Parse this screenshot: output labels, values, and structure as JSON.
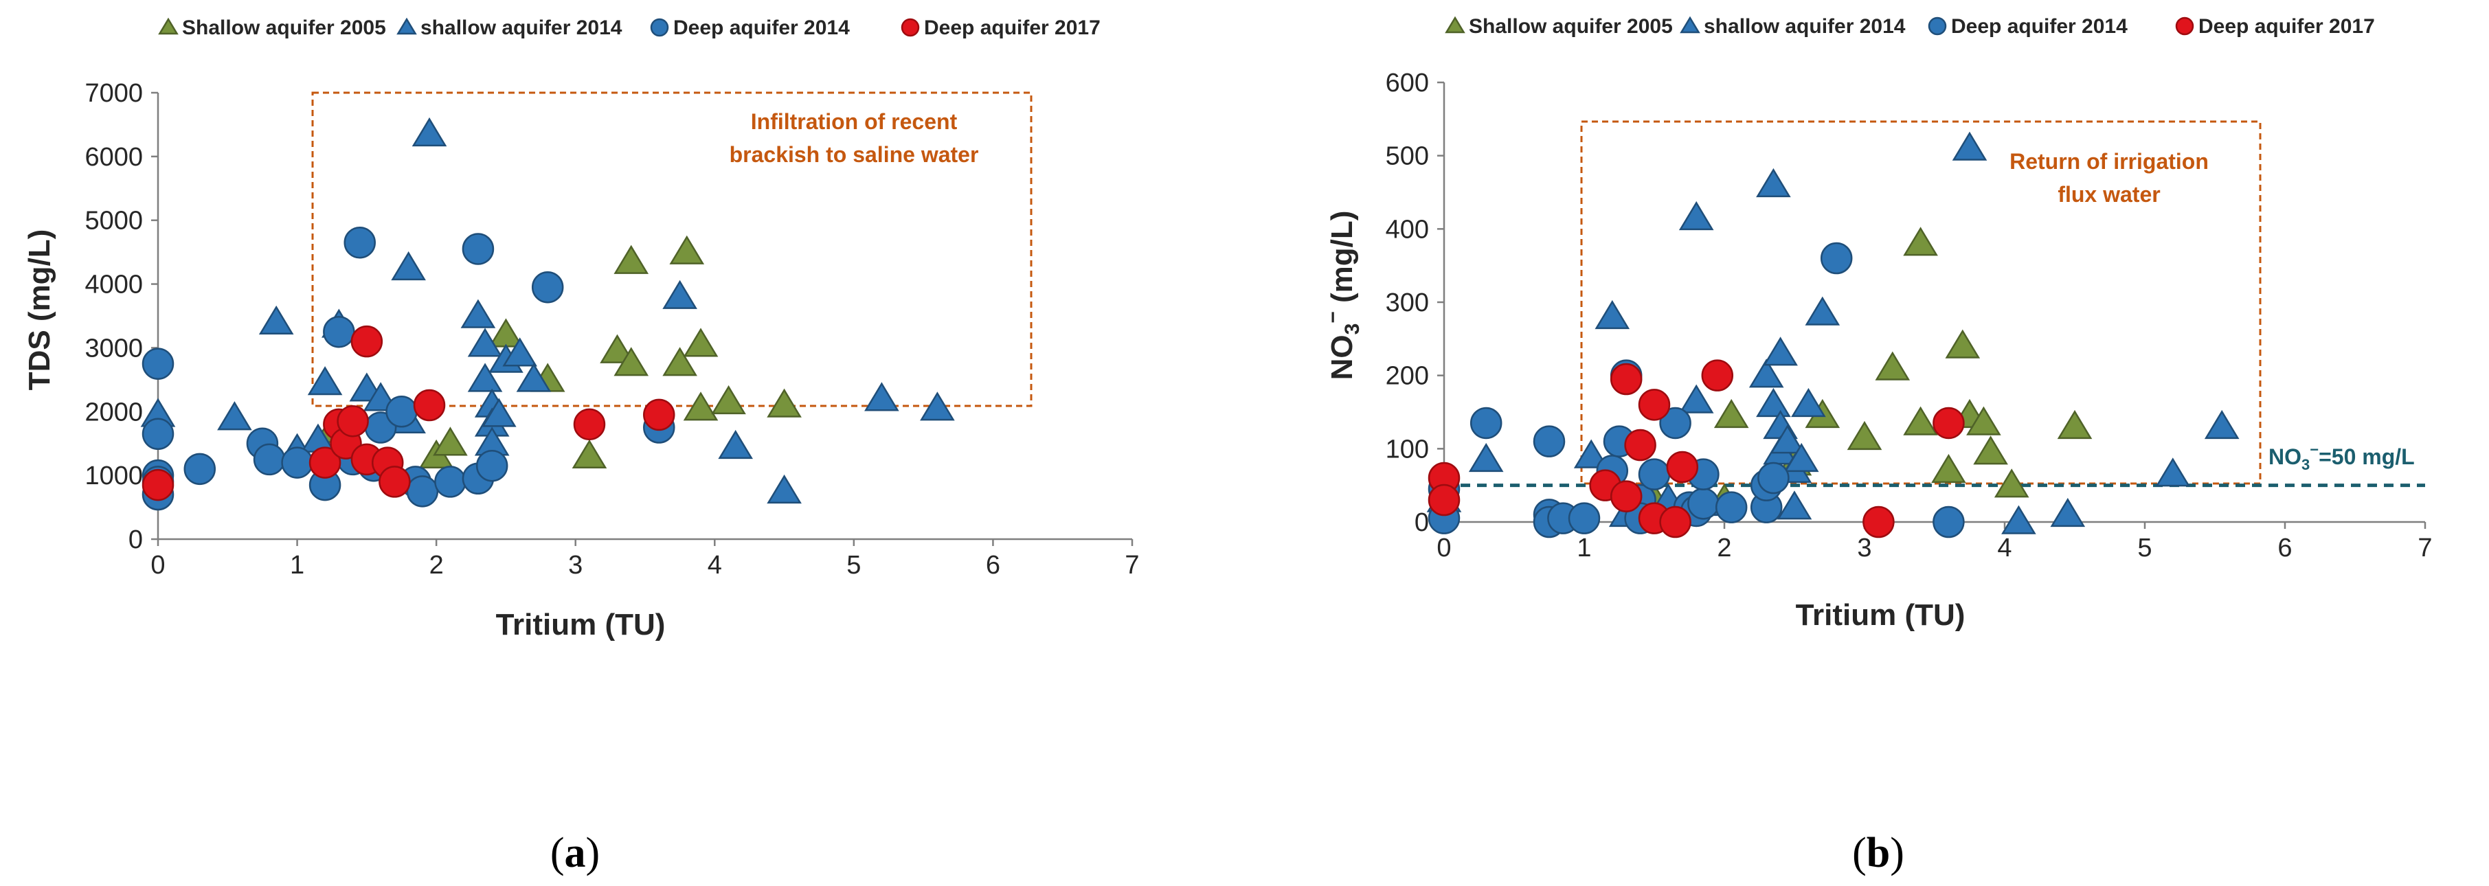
{
  "colors": {
    "shallow2005": "#77933c",
    "shallow2014": "#2e75b6",
    "deep2014": "#2e75b6",
    "deep2017": "#e0141c",
    "marker_edge_green": "#4f6228",
    "marker_edge_blue": "#1f4e79",
    "marker_edge_red": "#9e0b0f",
    "annotation_box": "#c5580f",
    "reference_line": "#1b5e6e"
  },
  "panels": [
    {
      "label": "a"
    },
    {
      "label": "b"
    }
  ],
  "chart_data": [
    {
      "type": "scatter",
      "xlabel": "Tritium (TU)",
      "ylabel": "TDS (mg/L)",
      "xlim": [
        0,
        7
      ],
      "ylim": [
        0,
        7000
      ],
      "xticks": [
        0,
        1,
        2,
        3,
        4,
        5,
        6,
        7
      ],
      "yticks": [
        0,
        1000,
        2000,
        3000,
        4000,
        5000,
        6000,
        7000
      ],
      "legend_position": "top",
      "annotation": {
        "lines": [
          "Infiltration of recent",
          "brackish to saline water"
        ],
        "box_x": [
          1.1,
          6.3
        ],
        "box_y": [
          2050,
          6900
        ]
      },
      "series": [
        {
          "name": "Shallow aquifer 2005",
          "marker": "triangle",
          "points": [
            [
              1.25,
              1700
            ],
            [
              2.0,
              1300
            ],
            [
              2.1,
              1500
            ],
            [
              2.5,
              3200
            ],
            [
              2.8,
              2500
            ],
            [
              3.1,
              1300
            ],
            [
              3.3,
              2950
            ],
            [
              3.4,
              4350
            ],
            [
              3.4,
              2750
            ],
            [
              3.75,
              2750
            ],
            [
              3.8,
              4500
            ],
            [
              3.9,
              2050
            ],
            [
              3.9,
              3050
            ],
            [
              4.1,
              2150
            ],
            [
              4.5,
              2100
            ]
          ]
        },
        {
          "name": "shallow aquifer 2014",
          "marker": "triangle",
          "points": [
            [
              0.0,
              1950
            ],
            [
              0.55,
              1900
            ],
            [
              0.85,
              3400
            ],
            [
              1.0,
              1400
            ],
            [
              1.15,
              1550
            ],
            [
              1.2,
              2450
            ],
            [
              1.3,
              3350
            ],
            [
              1.5,
              2350
            ],
            [
              1.6,
              2200
            ],
            [
              1.8,
              4250
            ],
            [
              1.8,
              1850
            ],
            [
              1.95,
              6350
            ],
            [
              2.3,
              3500
            ],
            [
              2.35,
              2500
            ],
            [
              2.35,
              3050
            ],
            [
              2.4,
              2100
            ],
            [
              2.4,
              1800
            ],
            [
              2.4,
              1500
            ],
            [
              2.45,
              1950
            ],
            [
              2.5,
              2800
            ],
            [
              2.6,
              2900
            ],
            [
              2.7,
              2500
            ],
            [
              3.75,
              3800
            ],
            [
              4.15,
              1450
            ],
            [
              4.5,
              750
            ],
            [
              5.2,
              2200
            ],
            [
              5.6,
              2050
            ]
          ]
        },
        {
          "name": "Deep aquifer 2014",
          "marker": "circle",
          "points": [
            [
              0.0,
              2750
            ],
            [
              0.0,
              1650
            ],
            [
              0.0,
              1000
            ],
            [
              0.0,
              900
            ],
            [
              0.0,
              700
            ],
            [
              0.3,
              1100
            ],
            [
              0.75,
              1500
            ],
            [
              0.8,
              1250
            ],
            [
              1.0,
              1200
            ],
            [
              1.2,
              850
            ],
            [
              1.3,
              3250
            ],
            [
              1.4,
              1250
            ],
            [
              1.45,
              4650
            ],
            [
              1.55,
              1150
            ],
            [
              1.6,
              1750
            ],
            [
              1.75,
              2000
            ],
            [
              1.85,
              900
            ],
            [
              1.9,
              750
            ],
            [
              2.1,
              900
            ],
            [
              2.3,
              950
            ],
            [
              2.3,
              4550
            ],
            [
              2.4,
              1150
            ],
            [
              2.8,
              3950
            ],
            [
              3.6,
              1750
            ]
          ]
        },
        {
          "name": "Deep aquifer 2017",
          "marker": "circle",
          "points": [
            [
              0.0,
              850
            ],
            [
              1.2,
              1200
            ],
            [
              1.3,
              1800
            ],
            [
              1.35,
              1500
            ],
            [
              1.4,
              1850
            ],
            [
              1.5,
              3100
            ],
            [
              1.5,
              1250
            ],
            [
              1.65,
              1200
            ],
            [
              1.7,
              900
            ],
            [
              1.95,
              2100
            ],
            [
              3.1,
              1800
            ],
            [
              3.6,
              1950
            ]
          ]
        }
      ]
    },
    {
      "type": "scatter",
      "xlabel": "Tritium (TU)",
      "ylabel_main": "NO",
      "ylabel_sub": "3",
      "ylabel_sup": "−",
      "ylabel_unit": " (mg/L)",
      "xlim": [
        0,
        7
      ],
      "ylim": [
        0,
        600
      ],
      "xticks": [
        0,
        1,
        2,
        3,
        4,
        5,
        6,
        7
      ],
      "yticks": [
        0,
        100,
        200,
        300,
        400,
        500,
        600
      ],
      "legend_position": "top",
      "reference_line": {
        "y": 50,
        "label_main": "NO",
        "label_sub": "3",
        "label_sup": "−",
        "label_rest": "=50 mg/L"
      },
      "annotation": {
        "lines": [
          "Return of irrigation",
          "flux water"
        ],
        "box_x": [
          0.95,
          5.8
        ],
        "box_y": [
          55,
          535
        ]
      },
      "series": [
        {
          "name": "Shallow aquifer 2005",
          "marker": "triangle",
          "points": [
            [
              1.5,
              30
            ],
            [
              2.0,
              30
            ],
            [
              2.05,
              145
            ],
            [
              2.5,
              80
            ],
            [
              2.7,
              145
            ],
            [
              3.0,
              115
            ],
            [
              3.2,
              210
            ],
            [
              3.4,
              380
            ],
            [
              3.4,
              135
            ],
            [
              3.6,
              70
            ],
            [
              3.7,
              240
            ],
            [
              3.75,
              145
            ],
            [
              3.85,
              135
            ],
            [
              3.9,
              95
            ],
            [
              4.05,
              50
            ],
            [
              4.5,
              130
            ]
          ]
        },
        {
          "name": "shallow aquifer 2014",
          "marker": "triangle",
          "points": [
            [
              0.0,
              30
            ],
            [
              0.3,
              85
            ],
            [
              1.05,
              90
            ],
            [
              1.2,
              280
            ],
            [
              1.3,
              10
            ],
            [
              1.5,
              5
            ],
            [
              1.6,
              30
            ],
            [
              1.8,
              165
            ],
            [
              1.8,
              415
            ],
            [
              1.85,
              25
            ],
            [
              2.3,
              200
            ],
            [
              2.35,
              460
            ],
            [
              2.35,
              160
            ],
            [
              2.4,
              230
            ],
            [
              2.4,
              130
            ],
            [
              2.4,
              95
            ],
            [
              2.45,
              110
            ],
            [
              2.5,
              70
            ],
            [
              2.5,
              20
            ],
            [
              2.55,
              85
            ],
            [
              2.6,
              160
            ],
            [
              2.7,
              285
            ],
            [
              3.75,
              510
            ],
            [
              4.1,
              0
            ],
            [
              4.45,
              10
            ],
            [
              5.2,
              65
            ],
            [
              5.55,
              130
            ]
          ]
        },
        {
          "name": "Deep aquifer 2014",
          "marker": "circle",
          "points": [
            [
              0.0,
              5
            ],
            [
              0.0,
              45
            ],
            [
              0.3,
              135
            ],
            [
              0.75,
              110
            ],
            [
              0.75,
              10
            ],
            [
              0.75,
              0
            ],
            [
              0.85,
              5
            ],
            [
              1.0,
              5
            ],
            [
              1.2,
              70
            ],
            [
              1.25,
              110
            ],
            [
              1.3,
              200
            ],
            [
              1.4,
              30
            ],
            [
              1.4,
              5
            ],
            [
              1.5,
              65
            ],
            [
              1.65,
              135
            ],
            [
              1.75,
              20
            ],
            [
              1.8,
              15
            ],
            [
              1.85,
              25
            ],
            [
              1.85,
              65
            ],
            [
              2.05,
              20
            ],
            [
              2.3,
              20
            ],
            [
              2.3,
              50
            ],
            [
              2.35,
              60
            ],
            [
              2.8,
              360
            ],
            [
              3.6,
              0
            ]
          ]
        },
        {
          "name": "Deep aquifer 2017",
          "marker": "circle",
          "points": [
            [
              0.0,
              60
            ],
            [
              0.0,
              30
            ],
            [
              1.15,
              50
            ],
            [
              1.3,
              195
            ],
            [
              1.3,
              35
            ],
            [
              1.4,
              105
            ],
            [
              1.5,
              160
            ],
            [
              1.5,
              5
            ],
            [
              1.65,
              0
            ],
            [
              1.7,
              75
            ],
            [
              1.95,
              200
            ],
            [
              3.1,
              0
            ],
            [
              3.6,
              135
            ]
          ]
        }
      ]
    }
  ]
}
